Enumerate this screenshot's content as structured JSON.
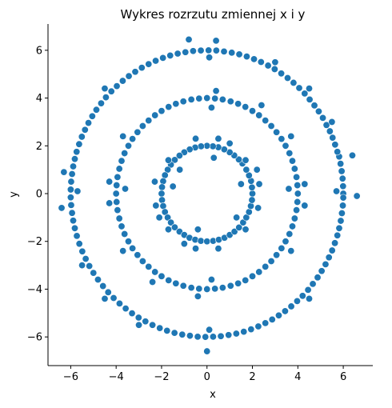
{
  "chart_data": {
    "type": "scatter",
    "title": "Wykres rozrzutu zmiennej x i y",
    "xlabel": "x",
    "ylabel": "y",
    "xlim": [
      -7,
      7.3
    ],
    "ylim": [
      -7.2,
      7.1
    ],
    "xticks": [
      -6,
      -4,
      -2,
      0,
      2,
      4,
      6
    ],
    "yticks": [
      -6,
      -4,
      -2,
      0,
      2,
      4,
      6
    ],
    "grid": false,
    "legend": "none",
    "spines": [
      "left",
      "bottom"
    ],
    "marker_color": "#1f77b4",
    "marker_edge": "#ffffff",
    "series": [
      {
        "points": [
          [
            2.0,
            0.0
          ],
          [
            1.98,
            0.26
          ],
          [
            1.94,
            0.53
          ],
          [
            1.85,
            0.76
          ],
          [
            1.73,
            1.0
          ],
          [
            1.56,
            1.26
          ],
          [
            1.4,
            1.43
          ],
          [
            1.2,
            1.6
          ],
          [
            1.0,
            1.73
          ],
          [
            0.76,
            1.85
          ],
          [
            0.5,
            1.94
          ],
          [
            0.26,
            1.98
          ],
          [
            0.0,
            2.0
          ],
          [
            -0.26,
            1.98
          ],
          [
            -0.52,
            1.93
          ],
          [
            -0.76,
            1.85
          ],
          [
            -1.0,
            1.73
          ],
          [
            -1.21,
            1.59
          ],
          [
            -1.42,
            1.41
          ],
          [
            -1.59,
            1.21
          ],
          [
            -1.73,
            1.0
          ],
          [
            -1.85,
            0.77
          ],
          [
            -1.93,
            0.52
          ],
          [
            -1.98,
            0.27
          ],
          [
            -2.0,
            0.0
          ],
          [
            -1.98,
            -0.27
          ],
          [
            -1.93,
            -0.52
          ],
          [
            -1.85,
            -0.77
          ],
          [
            -1.73,
            -1.0
          ],
          [
            -1.59,
            -1.21
          ],
          [
            -1.42,
            -1.41
          ],
          [
            -1.21,
            -1.59
          ],
          [
            -1.0,
            -1.73
          ],
          [
            -0.77,
            -1.85
          ],
          [
            -0.52,
            -1.93
          ],
          [
            -0.27,
            -1.98
          ],
          [
            0.0,
            -2.0
          ],
          [
            0.27,
            -1.98
          ],
          [
            0.52,
            -1.93
          ],
          [
            0.77,
            -1.85
          ],
          [
            1.0,
            -1.73
          ],
          [
            1.21,
            -1.59
          ],
          [
            1.41,
            -1.42
          ],
          [
            1.59,
            -1.21
          ],
          [
            1.73,
            -1.0
          ],
          [
            1.85,
            -0.77
          ],
          [
            1.93,
            -0.52
          ],
          [
            1.98,
            -0.27
          ],
          [
            2.3,
            0.4
          ],
          [
            2.25,
            -0.6
          ],
          [
            -2.3,
            0.5
          ],
          [
            -2.25,
            -0.5
          ],
          [
            0.5,
            2.3
          ],
          [
            -0.5,
            2.3
          ],
          [
            0.5,
            -2.3
          ],
          [
            -0.5,
            -2.3
          ],
          [
            1.7,
            1.4
          ],
          [
            -1.7,
            1.4
          ],
          [
            1.7,
            -1.5
          ],
          [
            -1.7,
            -1.5
          ],
          [
            1.5,
            0.4
          ],
          [
            -1.5,
            0.3
          ],
          [
            0.3,
            1.5
          ],
          [
            -0.4,
            -1.5
          ],
          [
            1.3,
            -1.0
          ],
          [
            -1.2,
            1.0
          ],
          [
            2.2,
            1.0
          ],
          [
            -2.1,
            -1.0
          ],
          [
            1.0,
            2.1
          ],
          [
            -1.0,
            -2.1
          ]
        ]
      },
      {
        "points": [
          [
            4.0,
            0.0
          ],
          [
            3.98,
            0.35
          ],
          [
            3.94,
            0.69
          ],
          [
            3.86,
            1.04
          ],
          [
            3.76,
            1.37
          ],
          [
            3.63,
            1.69
          ],
          [
            3.46,
            2.0
          ],
          [
            3.28,
            2.29
          ],
          [
            3.06,
            2.57
          ],
          [
            2.83,
            2.83
          ],
          [
            2.57,
            3.06
          ],
          [
            2.29,
            3.28
          ],
          [
            2.0,
            3.46
          ],
          [
            1.69,
            3.63
          ],
          [
            1.37,
            3.76
          ],
          [
            1.04,
            3.86
          ],
          [
            0.69,
            3.94
          ],
          [
            0.35,
            3.98
          ],
          [
            0.0,
            4.0
          ],
          [
            -0.35,
            3.98
          ],
          [
            -0.69,
            3.94
          ],
          [
            -1.04,
            3.86
          ],
          [
            -1.37,
            3.76
          ],
          [
            -1.69,
            3.63
          ],
          [
            -2.0,
            3.46
          ],
          [
            -2.29,
            3.28
          ],
          [
            -2.57,
            3.06
          ],
          [
            -2.83,
            2.83
          ],
          [
            -3.06,
            2.57
          ],
          [
            -3.28,
            2.29
          ],
          [
            -3.46,
            2.0
          ],
          [
            -3.63,
            1.69
          ],
          [
            -3.76,
            1.37
          ],
          [
            -3.86,
            1.04
          ],
          [
            -3.94,
            0.69
          ],
          [
            -3.98,
            0.35
          ],
          [
            -4.0,
            0.0
          ],
          [
            -3.98,
            -0.35
          ],
          [
            -3.94,
            -0.69
          ],
          [
            -3.86,
            -1.04
          ],
          [
            -3.76,
            -1.37
          ],
          [
            -3.63,
            -1.69
          ],
          [
            -3.46,
            -2.0
          ],
          [
            -3.28,
            -2.29
          ],
          [
            -3.06,
            -2.57
          ],
          [
            -2.83,
            -2.83
          ],
          [
            -2.57,
            -3.06
          ],
          [
            -2.29,
            -3.28
          ],
          [
            -2.0,
            -3.46
          ],
          [
            -1.69,
            -3.63
          ],
          [
            -1.37,
            -3.76
          ],
          [
            -1.04,
            -3.86
          ],
          [
            -0.69,
            -3.94
          ],
          [
            -0.35,
            -3.98
          ],
          [
            0.0,
            -4.0
          ],
          [
            0.35,
            -3.98
          ],
          [
            0.69,
            -3.94
          ],
          [
            1.04,
            -3.86
          ],
          [
            1.37,
            -3.76
          ],
          [
            1.69,
            -3.63
          ],
          [
            2.0,
            -3.46
          ],
          [
            2.29,
            -3.28
          ],
          [
            2.57,
            -3.06
          ],
          [
            2.83,
            -2.83
          ],
          [
            3.06,
            -2.57
          ],
          [
            3.28,
            -2.29
          ],
          [
            3.46,
            -2.0
          ],
          [
            3.63,
            -1.69
          ],
          [
            3.76,
            -1.37
          ],
          [
            3.86,
            -1.04
          ],
          [
            3.94,
            -0.69
          ],
          [
            3.98,
            -0.35
          ],
          [
            4.3,
            0.4
          ],
          [
            -4.3,
            -0.4
          ],
          [
            4.3,
            -0.5
          ],
          [
            -4.3,
            0.5
          ],
          [
            0.4,
            4.3
          ],
          [
            -0.4,
            -4.3
          ],
          [
            3.7,
            2.4
          ],
          [
            -3.7,
            -2.4
          ],
          [
            -3.7,
            2.4
          ],
          [
            3.7,
            -2.4
          ],
          [
            2.4,
            3.7
          ],
          [
            -2.4,
            -3.7
          ],
          [
            3.6,
            0.2
          ],
          [
            -3.6,
            0.2
          ],
          [
            0.2,
            3.6
          ],
          [
            0.2,
            -3.6
          ]
        ]
      },
      {
        "points": [
          [
            6.0,
            0.0
          ],
          [
            5.99,
            0.31
          ],
          [
            5.97,
            0.63
          ],
          [
            5.93,
            0.94
          ],
          [
            5.88,
            1.25
          ],
          [
            5.82,
            1.55
          ],
          [
            5.74,
            1.75
          ],
          [
            5.64,
            2.05
          ],
          [
            5.53,
            2.34
          ],
          [
            5.41,
            2.61
          ],
          [
            5.26,
            2.87
          ],
          [
            5.1,
            3.17
          ],
          [
            4.92,
            3.44
          ],
          [
            4.73,
            3.69
          ],
          [
            4.52,
            3.94
          ],
          [
            4.3,
            4.19
          ],
          [
            4.06,
            4.42
          ],
          [
            3.81,
            4.64
          ],
          [
            3.55,
            4.84
          ],
          [
            3.27,
            5.03
          ],
          [
            2.98,
            5.21
          ],
          [
            2.69,
            5.36
          ],
          [
            2.38,
            5.51
          ],
          [
            2.07,
            5.63
          ],
          [
            1.75,
            5.74
          ],
          [
            1.42,
            5.83
          ],
          [
            1.09,
            5.9
          ],
          [
            0.75,
            5.95
          ],
          [
            0.41,
            5.99
          ],
          [
            0.07,
            6.0
          ],
          [
            -0.27,
            5.99
          ],
          [
            -0.61,
            5.97
          ],
          [
            -0.95,
            5.92
          ],
          [
            -1.29,
            5.86
          ],
          [
            -1.62,
            5.78
          ],
          [
            -1.94,
            5.68
          ],
          [
            -2.26,
            5.56
          ],
          [
            -2.57,
            5.42
          ],
          [
            -2.87,
            5.27
          ],
          [
            -3.16,
            5.1
          ],
          [
            -3.44,
            4.92
          ],
          [
            -3.71,
            4.72
          ],
          [
            -3.97,
            4.5
          ],
          [
            -4.21,
            4.28
          ],
          [
            -4.45,
            4.03
          ],
          [
            -4.66,
            3.78
          ],
          [
            -4.87,
            3.51
          ],
          [
            -5.05,
            3.24
          ],
          [
            -5.22,
            2.96
          ],
          [
            -5.37,
            2.67
          ],
          [
            -5.51,
            2.38
          ],
          [
            -5.63,
            2.07
          ],
          [
            -5.74,
            1.75
          ],
          [
            -5.82,
            1.45
          ],
          [
            -5.89,
            1.14
          ],
          [
            -5.94,
            0.82
          ],
          [
            -5.98,
            0.5
          ],
          [
            -6.0,
            0.17
          ],
          [
            -6.0,
            -0.16
          ],
          [
            -5.98,
            -0.48
          ],
          [
            -5.94,
            -0.81
          ],
          [
            -5.89,
            -1.13
          ],
          [
            -5.82,
            -1.45
          ],
          [
            -5.73,
            -1.77
          ],
          [
            -5.62,
            -2.1
          ],
          [
            -5.49,
            -2.42
          ],
          [
            -5.34,
            -2.73
          ],
          [
            -5.18,
            -3.03
          ],
          [
            -5.0,
            -3.32
          ],
          [
            -4.8,
            -3.6
          ],
          [
            -4.58,
            -3.87
          ],
          [
            -4.35,
            -4.13
          ],
          [
            -4.11,
            -4.37
          ],
          [
            -3.85,
            -4.6
          ],
          [
            -3.58,
            -4.81
          ],
          [
            -3.3,
            -5.01
          ],
          [
            -3.01,
            -5.19
          ],
          [
            -2.71,
            -5.35
          ],
          [
            -2.4,
            -5.5
          ],
          [
            -2.08,
            -5.63
          ],
          [
            -1.76,
            -5.74
          ],
          [
            -1.43,
            -5.83
          ],
          [
            -1.09,
            -5.9
          ],
          [
            -0.75,
            -5.95
          ],
          [
            -0.41,
            -5.99
          ],
          [
            -0.07,
            -6.0
          ],
          [
            0.27,
            -5.99
          ],
          [
            0.61,
            -5.97
          ],
          [
            0.95,
            -5.92
          ],
          [
            1.29,
            -5.86
          ],
          [
            1.62,
            -5.78
          ],
          [
            1.94,
            -5.68
          ],
          [
            2.26,
            -5.56
          ],
          [
            2.57,
            -5.42
          ],
          [
            2.87,
            -5.27
          ],
          [
            3.16,
            -5.1
          ],
          [
            3.44,
            -4.92
          ],
          [
            3.71,
            -4.72
          ],
          [
            3.97,
            -4.5
          ],
          [
            4.21,
            -4.28
          ],
          [
            4.45,
            -4.03
          ],
          [
            4.66,
            -3.78
          ],
          [
            4.87,
            -3.51
          ],
          [
            5.05,
            -3.24
          ],
          [
            5.22,
            -2.96
          ],
          [
            5.37,
            -2.67
          ],
          [
            5.51,
            -2.38
          ],
          [
            5.63,
            -2.07
          ],
          [
            5.74,
            -1.75
          ],
          [
            5.82,
            -1.45
          ],
          [
            5.89,
            -1.14
          ],
          [
            5.94,
            -0.82
          ],
          [
            5.98,
            -0.5
          ],
          [
            6.0,
            -0.17
          ],
          [
            6.6,
            -0.1
          ],
          [
            -6.3,
            0.9
          ],
          [
            -0.8,
            6.45
          ],
          [
            0.4,
            6.4
          ],
          [
            0.0,
            -6.6
          ],
          [
            6.4,
            1.6
          ],
          [
            -6.4,
            -0.6
          ],
          [
            4.5,
            4.4
          ],
          [
            -4.5,
            4.4
          ],
          [
            4.5,
            -4.4
          ],
          [
            -4.5,
            -4.4
          ],
          [
            5.5,
            3.0
          ],
          [
            -5.5,
            -3.0
          ],
          [
            3.0,
            5.5
          ],
          [
            -3.0,
            -5.5
          ],
          [
            5.7,
            0.1
          ],
          [
            -5.7,
            0.1
          ],
          [
            0.1,
            5.7
          ],
          [
            0.1,
            -5.7
          ]
        ]
      }
    ]
  }
}
